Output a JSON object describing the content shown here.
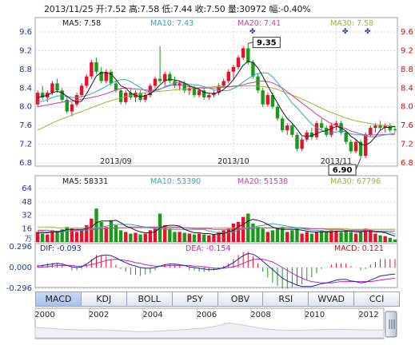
{
  "header": {
    "text": "2013/11/25 开:7.52  高:7.58  低:7.44  收:7.50  量:30972  幅:-0.40%"
  },
  "colors": {
    "up": "#e8102a",
    "down": "#1a9a1a",
    "ma5": "#1a1a1a",
    "ma10": "#2aa8c8",
    "ma20": "#d03c9c",
    "ma30": "#a8b030",
    "dif": "#1a2a9a",
    "dea": "#c020c0",
    "axis_text_left": "#1a3aa0",
    "axis_text_right": "#c01010",
    "grid": "#d8d8d8"
  },
  "chart_data": [
    {
      "type": "candlestick",
      "legend": [
        {
          "label": "MA5: 7.58",
          "color": "ma5"
        },
        {
          "label": "MA10: 7.43",
          "color": "ma10"
        },
        {
          "label": "MA20: 7.41",
          "color": "ma20"
        },
        {
          "label": "MA30: 7.58",
          "color": "ma30"
        }
      ],
      "ylim": [
        6.8,
        9.6
      ],
      "yticks_left": [
        "9.6",
        "9.2",
        "8.8",
        "8.4",
        "8.0",
        "7.6",
        "7.2",
        "6.8"
      ],
      "yticks_right": [
        "9.6",
        "9.2",
        "8.8",
        "8.4",
        "8.0",
        "7.6",
        "7.2",
        "6.8"
      ],
      "xticks": [
        {
          "label": "2013/09",
          "index": 16
        },
        {
          "label": "2013/10",
          "index": 40
        },
        {
          "label": "2013/11",
          "index": 61
        }
      ],
      "annotations": [
        {
          "label": "9.35",
          "index": 43,
          "value": 9.35
        },
        {
          "label": "6.90",
          "index": 66,
          "value": 6.9
        }
      ],
      "candles": [
        [
          8.05,
          8.35,
          8.0,
          8.3
        ],
        [
          8.3,
          8.45,
          8.15,
          8.2
        ],
        [
          8.2,
          8.35,
          8.1,
          8.3
        ],
        [
          8.3,
          8.55,
          8.25,
          8.5
        ],
        [
          8.5,
          8.6,
          8.3,
          8.35
        ],
        [
          8.35,
          8.4,
          8.1,
          8.15
        ],
        [
          8.15,
          8.2,
          7.85,
          7.9
        ],
        [
          7.9,
          8.1,
          7.8,
          8.05
        ],
        [
          8.05,
          8.3,
          8.0,
          8.25
        ],
        [
          8.25,
          8.5,
          8.2,
          8.45
        ],
        [
          8.45,
          8.7,
          8.4,
          8.65
        ],
        [
          8.65,
          9.0,
          8.6,
          8.95
        ],
        [
          8.95,
          9.05,
          8.7,
          8.75
        ],
        [
          8.75,
          8.85,
          8.5,
          8.55
        ],
        [
          8.55,
          8.8,
          8.5,
          8.75
        ],
        [
          8.75,
          8.8,
          8.45,
          8.5
        ],
        [
          8.5,
          8.55,
          8.3,
          8.35
        ],
        [
          8.35,
          8.4,
          8.05,
          8.1
        ],
        [
          8.1,
          8.35,
          8.05,
          8.3
        ],
        [
          8.3,
          8.4,
          8.15,
          8.2
        ],
        [
          8.2,
          8.35,
          8.1,
          8.3
        ],
        [
          8.3,
          8.35,
          8.1,
          8.15
        ],
        [
          8.15,
          8.3,
          8.1,
          8.25
        ],
        [
          8.25,
          8.5,
          8.2,
          8.45
        ],
        [
          8.45,
          8.65,
          8.4,
          8.6
        ],
        [
          8.6,
          9.3,
          8.5,
          8.55
        ],
        [
          8.55,
          8.75,
          8.45,
          8.7
        ],
        [
          8.7,
          8.75,
          8.5,
          8.55
        ],
        [
          8.55,
          8.65,
          8.4,
          8.45
        ],
        [
          8.45,
          8.55,
          8.35,
          8.5
        ],
        [
          8.5,
          8.55,
          8.3,
          8.35
        ],
        [
          8.35,
          8.45,
          8.25,
          8.4
        ],
        [
          8.4,
          8.45,
          8.2,
          8.25
        ],
        [
          8.25,
          8.4,
          8.2,
          8.35
        ],
        [
          8.35,
          8.4,
          8.15,
          8.2
        ],
        [
          8.2,
          8.3,
          8.15,
          8.25
        ],
        [
          8.25,
          8.35,
          8.2,
          8.3
        ],
        [
          8.3,
          8.5,
          8.25,
          8.45
        ],
        [
          8.45,
          8.6,
          8.4,
          8.55
        ],
        [
          8.55,
          8.8,
          8.5,
          8.75
        ],
        [
          8.75,
          8.9,
          8.6,
          8.85
        ],
        [
          8.85,
          9.1,
          8.8,
          9.05
        ],
        [
          9.05,
          9.3,
          9.0,
          9.25
        ],
        [
          9.25,
          9.35,
          8.9,
          8.95
        ],
        [
          8.95,
          9.0,
          8.6,
          8.65
        ],
        [
          8.65,
          8.7,
          8.3,
          8.35
        ],
        [
          8.35,
          8.4,
          8.0,
          8.05
        ],
        [
          8.05,
          8.3,
          8.0,
          8.25
        ],
        [
          8.25,
          8.3,
          7.95,
          8.0
        ],
        [
          8.0,
          8.05,
          7.7,
          7.75
        ],
        [
          7.75,
          7.8,
          7.45,
          7.5
        ],
        [
          7.5,
          7.65,
          7.4,
          7.6
        ],
        [
          7.6,
          7.65,
          7.35,
          7.4
        ],
        [
          7.4,
          7.45,
          7.05,
          7.1
        ],
        [
          7.1,
          7.35,
          7.05,
          7.3
        ],
        [
          7.3,
          7.5,
          7.25,
          7.45
        ],
        [
          7.45,
          7.55,
          7.3,
          7.35
        ],
        [
          7.35,
          7.7,
          7.3,
          7.65
        ],
        [
          7.65,
          7.75,
          7.5,
          7.55
        ],
        [
          7.55,
          7.6,
          7.35,
          7.4
        ],
        [
          7.4,
          7.65,
          7.35,
          7.6
        ],
        [
          7.6,
          7.7,
          7.5,
          7.65
        ],
        [
          7.65,
          7.7,
          7.4,
          7.45
        ],
        [
          7.45,
          7.5,
          7.2,
          7.25
        ],
        [
          7.25,
          7.3,
          7.0,
          7.05
        ],
        [
          7.05,
          7.3,
          7.0,
          7.25
        ],
        [
          7.25,
          7.3,
          6.9,
          6.95
        ],
        [
          6.95,
          7.45,
          6.9,
          7.4
        ],
        [
          7.4,
          7.6,
          7.35,
          7.55
        ],
        [
          7.55,
          7.65,
          7.45,
          7.6
        ],
        [
          7.6,
          7.7,
          7.5,
          7.55
        ],
        [
          7.55,
          7.65,
          7.45,
          7.6
        ],
        [
          7.6,
          7.65,
          7.45,
          7.5
        ],
        [
          7.52,
          7.58,
          7.44,
          7.5
        ]
      ],
      "ma5": [
        8.2,
        8.22,
        8.25,
        8.3,
        8.33,
        8.3,
        8.22,
        8.15,
        8.1,
        8.12,
        8.28,
        8.47,
        8.66,
        8.73,
        8.73,
        8.7,
        8.58,
        8.45,
        8.4,
        8.29,
        8.25,
        8.21,
        8.24,
        8.28,
        8.36,
        8.47,
        8.56,
        8.59,
        8.57,
        8.55,
        8.51,
        8.45,
        8.41,
        8.37,
        8.31,
        8.29,
        8.28,
        8.31,
        8.37,
        8.46,
        8.58,
        8.73,
        8.89,
        8.97,
        8.95,
        8.83,
        8.65,
        8.45,
        8.26,
        8.08,
        7.9,
        7.75,
        7.65,
        7.52,
        7.38,
        7.37,
        7.38,
        7.43,
        7.47,
        7.49,
        7.53,
        7.58,
        7.55,
        7.48,
        7.37,
        7.3,
        7.2,
        7.18,
        7.24,
        7.36,
        7.5,
        7.56,
        7.56,
        7.58
      ],
      "ma10": [
        8.1,
        8.12,
        8.15,
        8.2,
        8.23,
        8.24,
        8.22,
        8.2,
        8.2,
        8.22,
        8.24,
        8.28,
        8.33,
        8.38,
        8.44,
        8.5,
        8.55,
        8.58,
        8.58,
        8.54,
        8.47,
        8.41,
        8.34,
        8.32,
        8.34,
        8.37,
        8.43,
        8.47,
        8.51,
        8.52,
        8.5,
        8.48,
        8.47,
        8.46,
        8.43,
        8.4,
        8.36,
        8.35,
        8.34,
        8.35,
        8.39,
        8.45,
        8.53,
        8.6,
        8.67,
        8.71,
        8.73,
        8.72,
        8.64,
        8.52,
        8.38,
        8.22,
        8.08,
        7.98,
        7.86,
        7.74,
        7.63,
        7.55,
        7.5,
        7.45,
        7.44,
        7.46,
        7.48,
        7.47,
        7.42,
        7.41,
        7.4,
        7.38,
        7.36,
        7.35,
        7.38,
        7.4,
        7.42,
        7.43
      ],
      "ma20": [
        8.0,
        8.02,
        8.04,
        8.06,
        8.08,
        8.1,
        8.11,
        8.12,
        8.14,
        8.16,
        8.18,
        8.2,
        8.22,
        8.25,
        8.28,
        8.32,
        8.36,
        8.39,
        8.4,
        8.39,
        8.38,
        8.37,
        8.36,
        8.35,
        8.36,
        8.38,
        8.42,
        8.45,
        8.47,
        8.47,
        8.45,
        8.43,
        8.41,
        8.4,
        8.4,
        8.4,
        8.4,
        8.41,
        8.42,
        8.43,
        8.44,
        8.45,
        8.47,
        8.5,
        8.52,
        8.54,
        8.55,
        8.54,
        8.51,
        8.46,
        8.4,
        8.32,
        8.24,
        8.16,
        8.08,
        8.0,
        7.92,
        7.84,
        7.77,
        7.7,
        7.64,
        7.6,
        7.57,
        7.53,
        7.48,
        7.45,
        7.42,
        7.4,
        7.4,
        7.4,
        7.4,
        7.41,
        7.41,
        7.41
      ],
      "ma30": [
        7.5,
        7.55,
        7.6,
        7.65,
        7.7,
        7.74,
        7.78,
        7.82,
        7.86,
        7.9,
        7.94,
        7.98,
        8.02,
        8.06,
        8.1,
        8.13,
        8.16,
        8.19,
        8.22,
        8.24,
        8.26,
        8.28,
        8.3,
        8.31,
        8.32,
        8.33,
        8.34,
        8.35,
        8.36,
        8.37,
        8.38,
        8.39,
        8.4,
        8.41,
        8.42,
        8.42,
        8.43,
        8.43,
        8.43,
        8.43,
        8.43,
        8.44,
        8.44,
        8.45,
        8.45,
        8.44,
        8.43,
        8.42,
        8.4,
        8.37,
        8.33,
        8.29,
        8.25,
        8.21,
        8.17,
        8.12,
        8.07,
        8.02,
        7.97,
        7.92,
        7.88,
        7.84,
        7.8,
        7.76,
        7.73,
        7.7,
        7.68,
        7.66,
        7.64,
        7.62,
        7.61,
        7.6,
        7.59,
        7.58
      ]
    },
    {
      "type": "bar",
      "legend": [
        {
          "label": "MA5: 58331",
          "color": "ma5"
        },
        {
          "label": "MA10: 53390",
          "color": "ma10"
        },
        {
          "label": "MA20: 51538",
          "color": "ma20"
        },
        {
          "label": "MA30: 67796",
          "color": "ma30"
        }
      ],
      "ylim": [
        0,
        64
      ],
      "yticks": [
        "64",
        "48",
        "32",
        "16"
      ],
      "unit_label": "万",
      "volume": [
        12,
        10,
        9,
        14,
        13,
        15,
        18,
        16,
        12,
        14,
        20,
        28,
        40,
        24,
        18,
        26,
        20,
        14,
        12,
        10,
        11,
        9,
        10,
        14,
        18,
        34,
        20,
        16,
        12,
        12,
        11,
        10,
        9,
        10,
        9,
        8,
        9,
        12,
        14,
        16,
        22,
        24,
        30,
        34,
        22,
        18,
        16,
        12,
        14,
        16,
        18,
        12,
        14,
        16,
        10,
        12,
        10,
        12,
        14,
        12,
        14,
        13,
        12,
        14,
        12,
        10,
        12,
        16,
        14,
        10,
        8,
        7,
        5,
        3
      ],
      "vol_ma5": [
        11,
        11,
        11,
        12,
        12,
        13,
        15,
        15,
        15,
        15,
        16,
        18,
        23,
        25,
        25,
        25,
        26,
        23,
        19,
        17,
        14,
        12,
        11,
        11,
        12,
        17,
        19,
        20,
        20,
        19,
        15,
        13,
        11,
        11,
        10,
        10,
        9,
        10,
        10,
        12,
        14,
        18,
        21,
        25,
        27,
        26,
        24,
        21,
        18,
        16,
        15,
        15,
        15,
        15,
        14,
        13,
        12,
        12,
        12,
        12,
        12,
        13,
        13,
        13,
        13,
        12,
        12,
        13,
        13,
        12,
        12,
        11,
        9,
        7
      ],
      "vol_ma10": [
        13,
        13,
        12,
        12,
        12,
        12,
        13,
        13,
        13,
        14,
        14,
        15,
        17,
        18,
        19,
        20,
        21,
        21,
        21,
        21,
        20,
        19,
        18,
        17,
        16,
        16,
        15,
        15,
        15,
        15,
        15,
        15,
        15,
        15,
        15,
        13,
        12,
        11,
        11,
        11,
        12,
        14,
        15,
        17,
        18,
        19,
        20,
        21,
        22,
        21,
        20,
        19,
        18,
        17,
        16,
        15,
        14,
        14,
        13,
        13,
        13,
        13,
        13,
        13,
        13,
        13,
        13,
        13,
        13,
        13,
        12,
        12,
        11,
        10
      ],
      "vol_ma20": [
        14,
        14,
        14,
        13,
        13,
        13,
        13,
        13,
        14,
        14,
        14,
        15,
        15,
        16,
        16,
        17,
        17,
        17,
        17,
        18,
        18,
        18,
        18,
        18,
        18,
        18,
        18,
        18,
        18,
        18,
        17,
        17,
        16,
        16,
        16,
        16,
        15,
        15,
        15,
        15,
        15,
        15,
        16,
        16,
        16,
        17,
        17,
        17,
        17,
        17,
        17,
        17,
        17,
        17,
        17,
        16,
        16,
        16,
        16,
        15,
        15,
        15,
        15,
        14,
        14,
        14,
        14,
        14,
        14,
        13,
        13,
        13,
        13,
        13
      ],
      "vol_ma30": [
        18,
        18,
        18,
        18,
        17,
        17,
        17,
        17,
        17,
        17,
        17,
        17,
        17,
        17,
        17,
        17,
        17,
        17,
        17,
        17,
        17,
        17,
        17,
        17,
        17,
        17,
        17,
        17,
        17,
        17,
        17,
        17,
        17,
        17,
        17,
        17,
        17,
        17,
        17,
        17,
        17,
        17,
        17,
        17,
        17,
        17,
        17,
        17,
        17,
        17,
        17,
        17,
        17,
        17,
        17,
        17,
        16,
        16,
        16,
        16,
        16,
        16,
        16,
        16,
        15,
        15,
        15,
        15,
        15,
        15,
        15,
        15,
        15,
        15
      ]
    },
    {
      "type": "line",
      "legend": [
        {
          "label": "DIF: -0.093",
          "color": "dif"
        },
        {
          "label": "DEA: -0.154",
          "color": "dea"
        },
        {
          "label": "MACD: 0.121",
          "color": "axis_text_right"
        }
      ],
      "ylim": [
        -0.296,
        0.296
      ],
      "yticks": [
        "0.296",
        "0.000",
        "-0.296"
      ],
      "dif": [
        0.02,
        0.03,
        0.04,
        0.05,
        0.06,
        0.05,
        0.03,
        0.01,
        0.0,
        0.01,
        0.05,
        0.1,
        0.15,
        0.17,
        0.18,
        0.17,
        0.14,
        0.1,
        0.07,
        0.04,
        0.02,
        0.0,
        -0.01,
        -0.01,
        0.0,
        0.02,
        0.04,
        0.05,
        0.05,
        0.04,
        0.03,
        0.01,
        0.0,
        -0.01,
        -0.02,
        -0.03,
        -0.03,
        -0.02,
        0.0,
        0.03,
        0.07,
        0.12,
        0.17,
        0.2,
        0.19,
        0.15,
        0.09,
        0.03,
        -0.03,
        -0.09,
        -0.15,
        -0.19,
        -0.22,
        -0.25,
        -0.27,
        -0.27,
        -0.27,
        -0.25,
        -0.23,
        -0.22,
        -0.2,
        -0.18,
        -0.17,
        -0.17,
        -0.19,
        -0.2,
        -0.22,
        -0.21,
        -0.18,
        -0.15,
        -0.12,
        -0.11,
        -0.1,
        -0.093
      ],
      "dea": [
        0.0,
        0.01,
        0.01,
        0.02,
        0.03,
        0.03,
        0.03,
        0.03,
        0.02,
        0.02,
        0.03,
        0.04,
        0.06,
        0.08,
        0.1,
        0.11,
        0.12,
        0.11,
        0.1,
        0.09,
        0.07,
        0.06,
        0.04,
        0.03,
        0.02,
        0.02,
        0.02,
        0.03,
        0.03,
        0.03,
        0.03,
        0.03,
        0.02,
        0.02,
        0.01,
        0.0,
        -0.01,
        -0.01,
        -0.01,
        0.0,
        0.01,
        0.03,
        0.06,
        0.09,
        0.11,
        0.12,
        0.12,
        0.1,
        0.08,
        0.04,
        0.0,
        -0.04,
        -0.08,
        -0.12,
        -0.15,
        -0.18,
        -0.2,
        -0.21,
        -0.22,
        -0.22,
        -0.22,
        -0.21,
        -0.2,
        -0.2,
        -0.2,
        -0.2,
        -0.2,
        -0.2,
        -0.2,
        -0.19,
        -0.18,
        -0.17,
        -0.16,
        -0.154
      ]
    }
  ],
  "tabs": [
    "MACD",
    "KDJ",
    "BOLL",
    "PSY",
    "OBV",
    "RSI",
    "WVAD",
    "CCI"
  ],
  "active_tab": "MACD",
  "timeline": {
    "ticks": [
      "2000",
      "2002",
      "2004",
      "2006",
      "2008",
      "2010",
      "2012"
    ]
  }
}
